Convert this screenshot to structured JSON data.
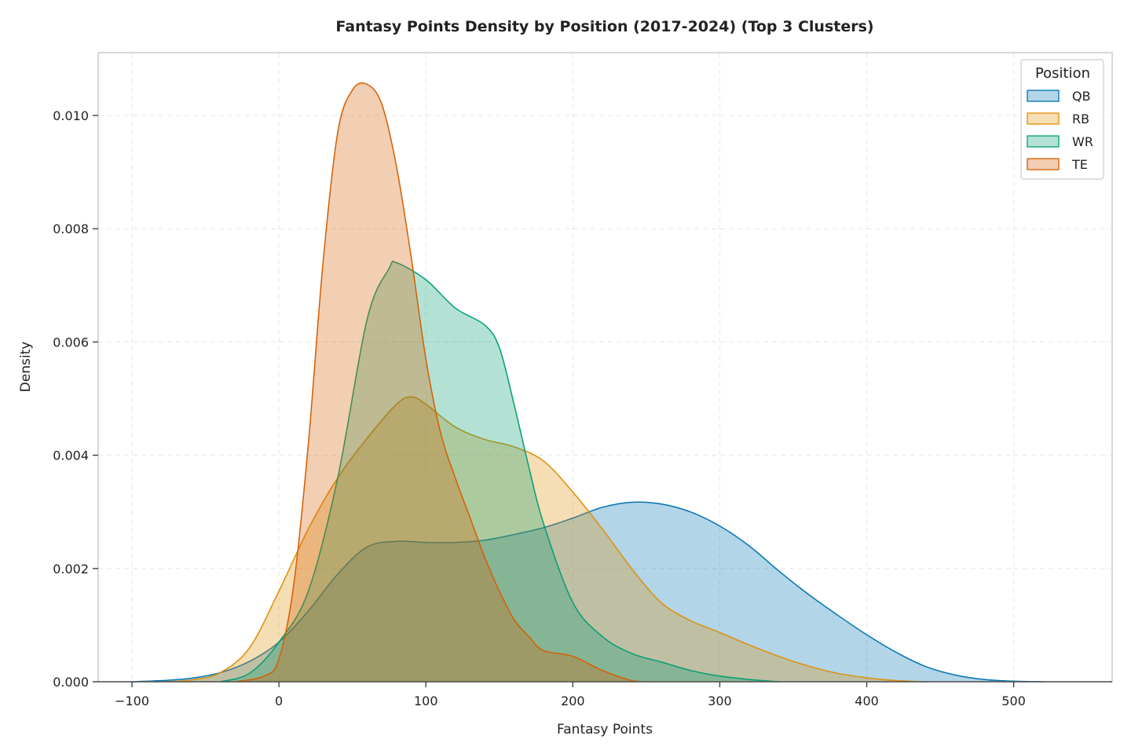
{
  "chart_data": {
    "type": "area",
    "title": "Fantasy Points Density by Position (2017-2024) (Top 3 Clusters)",
    "xlabel": "Fantasy Points",
    "ylabel": "Density",
    "xlim": [
      -123,
      567
    ],
    "ylim": [
      0,
      0.01111
    ],
    "x_ticks": [
      -100,
      0,
      100,
      200,
      300,
      400,
      500
    ],
    "x_tick_labels": [
      "−100",
      "0",
      "100",
      "200",
      "300",
      "400",
      "500"
    ],
    "y_ticks": [
      0,
      0.002,
      0.004,
      0.006,
      0.008,
      0.01
    ],
    "y_tick_labels": [
      "0.000",
      "0.002",
      "0.004",
      "0.006",
      "0.008",
      "0.010"
    ],
    "grid": true,
    "legend": {
      "title": "Position",
      "placement": "top-right"
    },
    "series": [
      {
        "name": "QB",
        "color": "#0173b2",
        "points": [
          [
            -100,
            0
          ],
          [
            -80,
            2e-05
          ],
          [
            -60,
            6e-05
          ],
          [
            -40,
            0.00016
          ],
          [
            -20,
            0.00036
          ],
          [
            0,
            0.0007
          ],
          [
            20,
            0.00125
          ],
          [
            40,
            0.0019
          ],
          [
            60,
            0.00238
          ],
          [
            80,
            0.00248
          ],
          [
            100,
            0.00246
          ],
          [
            120,
            0.00246
          ],
          [
            140,
            0.0025
          ],
          [
            160,
            0.0026
          ],
          [
            180,
            0.00272
          ],
          [
            200,
            0.00289
          ],
          [
            220,
            0.00308
          ],
          [
            240,
            0.00317
          ],
          [
            260,
            0.00314
          ],
          [
            280,
            0.003
          ],
          [
            300,
            0.00275
          ],
          [
            320,
            0.0024
          ],
          [
            340,
            0.00196
          ],
          [
            360,
            0.00155
          ],
          [
            380,
            0.00118
          ],
          [
            400,
            0.00083
          ],
          [
            420,
            0.00052
          ],
          [
            440,
            0.00027
          ],
          [
            460,
            0.00012
          ],
          [
            480,
            4e-05
          ],
          [
            500,
            1e-05
          ],
          [
            520,
            0
          ]
        ]
      },
      {
        "name": "RB",
        "color": "#de8f05",
        "points": [
          [
            -80,
            0
          ],
          [
            -60,
            3e-05
          ],
          [
            -40,
            0.00016
          ],
          [
            -20,
            0.0006
          ],
          [
            0,
            0.0016
          ],
          [
            20,
            0.0027
          ],
          [
            40,
            0.0036
          ],
          [
            60,
            0.0043
          ],
          [
            80,
            0.0049
          ],
          [
            90,
            0.00503
          ],
          [
            100,
            0.0049
          ],
          [
            120,
            0.0045
          ],
          [
            140,
            0.00428
          ],
          [
            160,
            0.00415
          ],
          [
            180,
            0.0039
          ],
          [
            200,
            0.00335
          ],
          [
            220,
            0.0027
          ],
          [
            240,
            0.002
          ],
          [
            260,
            0.0014
          ],
          [
            280,
            0.00108
          ],
          [
            300,
            0.00087
          ],
          [
            320,
            0.00065
          ],
          [
            340,
            0.00045
          ],
          [
            360,
            0.00028
          ],
          [
            380,
            0.00015
          ],
          [
            400,
            7e-05
          ],
          [
            420,
            2e-05
          ],
          [
            440,
            0
          ]
        ]
      },
      {
        "name": "WR",
        "color": "#029e73",
        "points": [
          [
            -40,
            0
          ],
          [
            -20,
            0.00015
          ],
          [
            0,
            0.0007
          ],
          [
            20,
            0.0016
          ],
          [
            40,
            0.0036
          ],
          [
            60,
            0.0064
          ],
          [
            75,
            0.0073
          ],
          [
            80,
            0.0074
          ],
          [
            100,
            0.0071
          ],
          [
            120,
            0.0066
          ],
          [
            140,
            0.0063
          ],
          [
            150,
            0.0059
          ],
          [
            160,
            0.0049
          ],
          [
            170,
            0.0038
          ],
          [
            180,
            0.0028
          ],
          [
            200,
            0.0014
          ],
          [
            220,
            0.0008
          ],
          [
            240,
            0.0005
          ],
          [
            260,
            0.00035
          ],
          [
            280,
            0.0002
          ],
          [
            300,
            0.0001
          ],
          [
            320,
            4e-05
          ],
          [
            340,
            0
          ]
        ]
      },
      {
        "name": "TE",
        "color": "#d55e00",
        "points": [
          [
            -30,
            0
          ],
          [
            -10,
            0.0001
          ],
          [
            0,
            0.0004
          ],
          [
            10,
            0.0017
          ],
          [
            20,
            0.0042
          ],
          [
            30,
            0.0074
          ],
          [
            40,
            0.0097
          ],
          [
            50,
            0.01045
          ],
          [
            60,
            0.01055
          ],
          [
            70,
            0.0102
          ],
          [
            80,
            0.0091
          ],
          [
            90,
            0.0075
          ],
          [
            100,
            0.0057
          ],
          [
            110,
            0.0044
          ],
          [
            120,
            0.0036
          ],
          [
            130,
            0.0029
          ],
          [
            140,
            0.0022
          ],
          [
            150,
            0.0016
          ],
          [
            160,
            0.0011
          ],
          [
            170,
            0.0008
          ],
          [
            180,
            0.00055
          ],
          [
            200,
            0.00045
          ],
          [
            220,
            0.0002
          ],
          [
            240,
            2e-05
          ],
          [
            250,
            0
          ]
        ]
      }
    ]
  }
}
